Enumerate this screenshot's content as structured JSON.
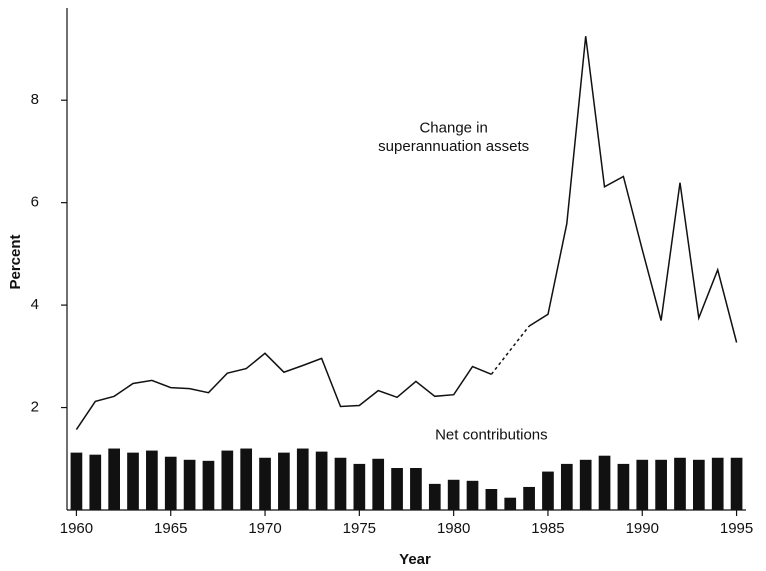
{
  "chart_data": {
    "type": "combo",
    "x_label": "Year",
    "y_label": "Percent",
    "xlim": [
      1959.5,
      1995.5
    ],
    "ylim": [
      0,
      9.8
    ],
    "xticks": [
      1960,
      1965,
      1970,
      1975,
      1980,
      1985,
      1990,
      1995
    ],
    "yticks": [
      2,
      4,
      6,
      8
    ],
    "x": [
      1960,
      1961,
      1962,
      1963,
      1964,
      1965,
      1966,
      1967,
      1968,
      1969,
      1970,
      1971,
      1972,
      1973,
      1974,
      1975,
      1976,
      1977,
      1978,
      1979,
      1980,
      1981,
      1982,
      1983,
      1984,
      1985,
      1986,
      1987,
      1988,
      1989,
      1990,
      1991,
      1992,
      1993,
      1994,
      1995
    ],
    "series": [
      {
        "name": "Change in\nsuperannuation assets",
        "type": "line",
        "color": "#111111",
        "dashed_range": [
          1982,
          1984
        ],
        "values": [
          1.57,
          2.12,
          2.22,
          2.47,
          2.53,
          2.39,
          2.37,
          2.29,
          2.67,
          2.76,
          3.06,
          2.69,
          2.82,
          2.96,
          2.02,
          2.04,
          2.33,
          2.2,
          2.51,
          2.22,
          2.25,
          2.8,
          2.65,
          3.12,
          3.59,
          3.82,
          5.59,
          9.25,
          6.31,
          6.51,
          5.08,
          3.7,
          6.39,
          3.75,
          4.69,
          3.27
        ]
      },
      {
        "name": "Net contributions",
        "type": "bar",
        "color": "#111111",
        "values": [
          1.12,
          1.08,
          1.2,
          1.12,
          1.16,
          1.04,
          0.98,
          0.96,
          1.16,
          1.2,
          1.02,
          1.12,
          1.2,
          1.14,
          1.02,
          0.9,
          1.0,
          0.82,
          0.82,
          0.51,
          0.59,
          0.57,
          0.41,
          0.24,
          0.45,
          0.75,
          0.9,
          0.98,
          1.06,
          0.9,
          0.98,
          0.98,
          1.02,
          0.98,
          1.02,
          1.02
        ]
      }
    ]
  }
}
